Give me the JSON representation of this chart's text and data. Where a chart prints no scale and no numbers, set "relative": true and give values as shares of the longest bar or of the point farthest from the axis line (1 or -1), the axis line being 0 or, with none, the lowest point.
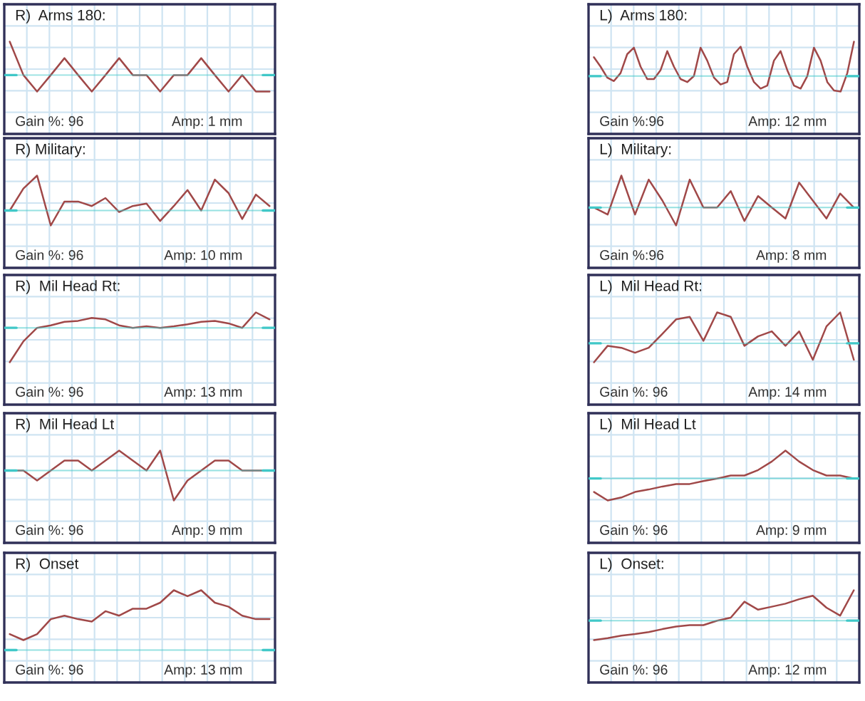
{
  "chart_data": [
    {
      "type": "line",
      "title": "R)  Arms 180:",
      "annotations": [
        "Gain %: 96",
        "Amp: 1 mm"
      ],
      "relative": true,
      "grid": true,
      "categories": [
        null,
        null,
        null,
        null,
        null,
        null,
        null,
        null,
        null,
        null,
        null,
        null,
        null,
        null,
        null,
        null,
        null,
        null,
        null,
        null
      ],
      "series": [
        {
          "color": "#a04848",
          "values": [
            1,
            0.33,
            0,
            0.33,
            0.67,
            0.33,
            0,
            0.33,
            0.67,
            0.33,
            0.33,
            0,
            0.33,
            0.33,
            0.67,
            0.33,
            0,
            0.33,
            0,
            0
          ]
        }
      ],
      "ref_lines": [
        {
          "axis": "y",
          "value": 0.33,
          "color": "#40c8c8"
        }
      ]
    },
    {
      "type": "line",
      "title": "L)  Arms 180:",
      "annotations": [
        "Gain %:96",
        "Amp: 12 mm"
      ],
      "relative": true,
      "grid": true,
      "categories": [
        null,
        null,
        null,
        null,
        null,
        null,
        null,
        null,
        null,
        null,
        null,
        null,
        null,
        null,
        null,
        null,
        null,
        null,
        null,
        null,
        null,
        null,
        null,
        null,
        null,
        null,
        null,
        null,
        null,
        null,
        null,
        null,
        null,
        null,
        null,
        null,
        null,
        null,
        null,
        null
      ],
      "series": [
        {
          "color": "#a04848",
          "values": [
            0.69,
            0.5,
            0.28,
            0.21,
            0.37,
            0.75,
            0.88,
            0.5,
            0.25,
            0.25,
            0.43,
            0.81,
            0.5,
            0.25,
            0.19,
            0.31,
            0.88,
            0.62,
            0.28,
            0.14,
            0.19,
            0.75,
            0.9,
            0.5,
            0.19,
            0.06,
            0.12,
            0.62,
            0.81,
            0.43,
            0.12,
            0.06,
            0.31,
            0.88,
            0.62,
            0.19,
            0.02,
            0,
            0.37,
            1
          ]
        }
      ],
      "ref_lines": [
        {
          "axis": "y",
          "value": 0.31,
          "color": "#40c8c8"
        }
      ]
    },
    {
      "type": "line",
      "title": "R) Military:",
      "annotations": [
        "Gain %: 96",
        "Amp: 10 mm"
      ],
      "relative": true,
      "grid": true,
      "categories": [
        null,
        null,
        null,
        null,
        null,
        null,
        null,
        null,
        null,
        null,
        null,
        null,
        null,
        null,
        null,
        null,
        null,
        null,
        null,
        null
      ],
      "series": [
        {
          "color": "#a04848",
          "values": [
            0.3,
            0.74,
            1,
            0,
            0.48,
            0.48,
            0.39,
            0.55,
            0.27,
            0.39,
            0.44,
            0.09,
            0.39,
            0.71,
            0.3,
            0.92,
            0.65,
            0.13,
            0.62,
            0.39
          ]
        }
      ],
      "ref_lines": [
        {
          "axis": "y",
          "value": 0.3,
          "color": "#40c8c8"
        }
      ]
    },
    {
      "type": "line",
      "title": "L)  Military:",
      "annotations": [
        "Gain %:96",
        "Amp: 8 mm"
      ],
      "relative": true,
      "grid": true,
      "categories": [
        null,
        null,
        null,
        null,
        null,
        null,
        null,
        null,
        null,
        null,
        null,
        null,
        null,
        null,
        null,
        null,
        null,
        null,
        null,
        null
      ],
      "series": [
        {
          "color": "#a04848",
          "values": [
            0.36,
            0.22,
            1,
            0.22,
            0.92,
            0.5,
            0,
            0.92,
            0.36,
            0.36,
            0.69,
            0.09,
            0.59,
            0.36,
            0.14,
            0.86,
            0.5,
            0.14,
            0.64,
            0.36
          ]
        }
      ],
      "ref_lines": [
        {
          "axis": "y",
          "value": 0.36,
          "color": "#40c8c8"
        }
      ]
    },
    {
      "type": "line",
      "title": "R)  Mil Head Rt:",
      "annotations": [
        "Gain %: 96",
        "Amp: 13 mm"
      ],
      "relative": true,
      "grid": true,
      "categories": [
        null,
        null,
        null,
        null,
        null,
        null,
        null,
        null,
        null,
        null,
        null,
        null,
        null,
        null,
        null,
        null,
        null,
        null,
        null,
        null
      ],
      "series": [
        {
          "color": "#a04848",
          "values": [
            0,
            0.42,
            0.69,
            0.74,
            0.81,
            0.83,
            0.89,
            0.86,
            0.74,
            0.69,
            0.72,
            0.69,
            0.72,
            0.76,
            0.81,
            0.83,
            0.78,
            0.69,
            1,
            0.86
          ]
        }
      ],
      "ref_lines": [
        {
          "axis": "y",
          "value": 0.69,
          "color": "#40c8c8"
        }
      ]
    },
    {
      "type": "line",
      "title": "L)  Mil Head Rt:",
      "annotations": [
        "Gain %: 96",
        "Amp: 14 mm"
      ],
      "relative": true,
      "grid": true,
      "categories": [
        null,
        null,
        null,
        null,
        null,
        null,
        null,
        null,
        null,
        null,
        null,
        null,
        null,
        null,
        null,
        null,
        null,
        null,
        null,
        null
      ],
      "series": [
        {
          "color": "#a04848",
          "values": [
            0,
            0.33,
            0.29,
            0.19,
            0.29,
            0.57,
            0.86,
            0.91,
            0.43,
            1,
            0.91,
            0.33,
            0.52,
            0.62,
            0.33,
            0.62,
            0.05,
            0.72,
            1,
            0.05
          ]
        }
      ],
      "ref_lines": [
        {
          "axis": "y",
          "value": 0.38,
          "color": "#40c8c8"
        }
      ]
    },
    {
      "type": "line",
      "title": "R)  Mil Head Lt",
      "annotations": [
        "Gain %: 96",
        "Amp: 9 mm"
      ],
      "relative": true,
      "grid": true,
      "categories": [
        null,
        null,
        null,
        null,
        null,
        null,
        null,
        null,
        null,
        null,
        null,
        null,
        null,
        null,
        null,
        null,
        null,
        null,
        null,
        null
      ],
      "series": [
        {
          "color": "#a04848",
          "values": [
            0.6,
            0.6,
            0.4,
            0.6,
            0.8,
            0.8,
            0.6,
            0.8,
            1,
            0.8,
            0.6,
            1,
            0,
            0.4,
            0.6,
            0.8,
            0.8,
            0.6,
            0.6,
            0.6
          ]
        }
      ],
      "ref_lines": [
        {
          "axis": "y",
          "value": 0.6,
          "color": "#40c8c8"
        }
      ]
    },
    {
      "type": "line",
      "title": "L)  Mil Head Lt",
      "annotations": [
        "Gain %: 96",
        "Amp: 9 mm"
      ],
      "relative": true,
      "grid": true,
      "categories": [
        null,
        null,
        null,
        null,
        null,
        null,
        null,
        null,
        null,
        null,
        null,
        null,
        null,
        null,
        null,
        null,
        null,
        null,
        null,
        null
      ],
      "series": [
        {
          "color": "#a04848",
          "values": [
            0.17,
            0,
            0.06,
            0.17,
            0.22,
            0.28,
            0.33,
            0.33,
            0.39,
            0.44,
            0.5,
            0.5,
            0.61,
            0.78,
            1,
            0.78,
            0.61,
            0.5,
            0.5,
            0.44
          ]
        }
      ],
      "ref_lines": [
        {
          "axis": "y",
          "value": 0.44,
          "color": "#40c8c8"
        }
      ]
    },
    {
      "type": "line",
      "title": "R)  Onset",
      "annotations": [
        "Gain %: 96",
        "Amp: 13 mm"
      ],
      "relative": true,
      "grid": true,
      "categories": [
        null,
        null,
        null,
        null,
        null,
        null,
        null,
        null,
        null,
        null,
        null,
        null,
        null,
        null,
        null,
        null,
        null,
        null,
        null,
        null
      ],
      "series": [
        {
          "color": "#a04848",
          "values": [
            0.12,
            0,
            0.12,
            0.42,
            0.49,
            0.42,
            0.37,
            0.58,
            0.49,
            0.63,
            0.63,
            0.75,
            1,
            0.88,
            1,
            0.75,
            0.67,
            0.49,
            0.42,
            0.42
          ]
        }
      ],
      "ref_lines": [
        {
          "axis": "y",
          "value": -0.2,
          "color": "#40c8c8"
        }
      ]
    },
    {
      "type": "line",
      "title": "L)  Onset:",
      "annotations": [
        "Gain %: 96",
        "Amp: 12 mm"
      ],
      "relative": true,
      "grid": true,
      "categories": [
        null,
        null,
        null,
        null,
        null,
        null,
        null,
        null,
        null,
        null,
        null,
        null,
        null,
        null,
        null,
        null,
        null,
        null,
        null,
        null
      ],
      "series": [
        {
          "color": "#a04848",
          "values": [
            0,
            0.04,
            0.09,
            0.12,
            0.16,
            0.22,
            0.27,
            0.3,
            0.3,
            0.39,
            0.45,
            0.77,
            0.61,
            0.67,
            0.73,
            0.82,
            0.89,
            0.65,
            0.49,
            1
          ]
        }
      ],
      "ref_lines": [
        {
          "axis": "y",
          "value": 0.39,
          "color": "#40c8c8"
        }
      ]
    }
  ]
}
